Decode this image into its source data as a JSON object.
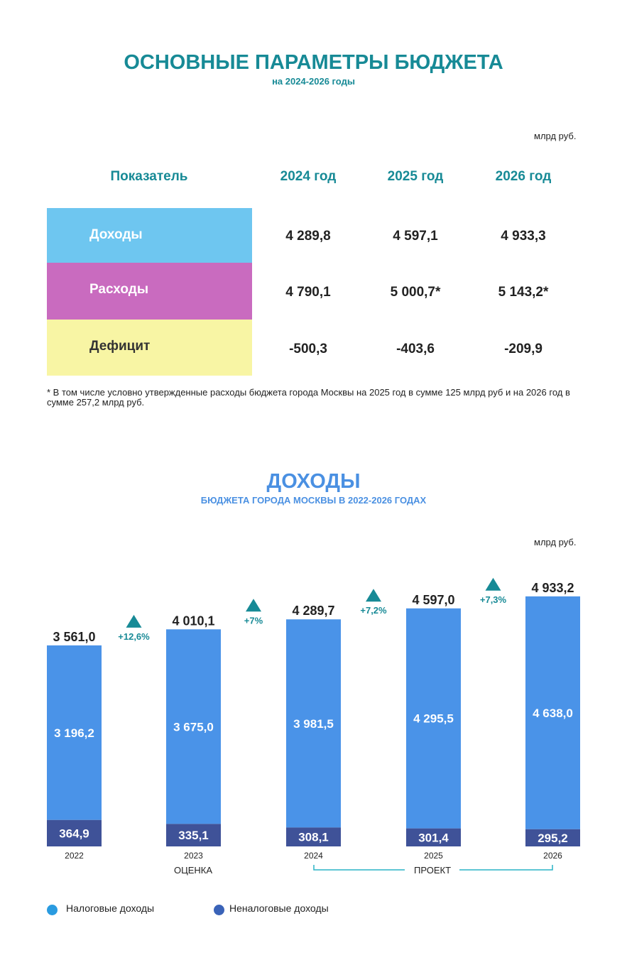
{
  "table_section": {
    "title": "ОСНОВНЫЕ ПАРАМЕТРЫ БЮДЖЕТА",
    "subtitle": "на 2024-2026 годы",
    "unit": "млрд руб.",
    "headers": [
      "Показатель",
      "2024 год",
      "2025 год",
      "2026 год"
    ],
    "rows": [
      {
        "label": "Доходы",
        "color": "#6ec6f0",
        "values": [
          "4 289,8",
          "4 597,1",
          "4 933,3"
        ]
      },
      {
        "label": "Расходы",
        "color": "#c96bbf",
        "values": [
          "4 790,1",
          "5 000,7*",
          "5 143,2*"
        ]
      },
      {
        "label": "Дефицит",
        "color": "#f8f5a4",
        "values": [
          "-500,3",
          "-403,6",
          "-209,9"
        ]
      }
    ],
    "footnote": "* В том числе условно утвержденные расходы бюджета города Москвы на 2025 год в сумме 125 млрд руб и на 2026 год в сумме 257,2 млрд руб."
  },
  "chart_data": {
    "type": "bar",
    "stacked": true,
    "title": "ДОХОДЫ",
    "subtitle": "БЮДЖЕТА ГОРОДА МОСКВЫ В 2022-2026 ГОДАХ",
    "unit": "млрд руб.",
    "categories": [
      "2022",
      "2023",
      "2024",
      "2025",
      "2026"
    ],
    "series": [
      {
        "name": "Неналоговые доходы",
        "color": "#3f5298",
        "values": [
          364.9,
          335.1,
          308.1,
          301.4,
          295.2
        ],
        "labels": [
          "364,9",
          "335,1",
          "308,1",
          "301,4",
          "295,2"
        ]
      },
      {
        "name": "Налоговые доходы",
        "color": "#4a93e8",
        "values": [
          3196.2,
          3675.0,
          3981.5,
          4295.5,
          4638.0
        ],
        "labels": [
          "3 196,2",
          "3 675,0",
          "3 981,5",
          "4 295,5",
          "4 638,0"
        ]
      }
    ],
    "totals": [
      3561.0,
      4010.1,
      4289.7,
      4597.0,
      4933.2
    ],
    "total_labels": [
      "3 561,0",
      "4 010,1",
      "4 289,7",
      "4 597,0",
      "4 933,2"
    ],
    "growth": [
      "+12,6%",
      "+7%",
      "+7,2%",
      "+7,3%"
    ],
    "growth_color": "#178a96",
    "period_labels": {
      "estimate": "ОЦЕНКА",
      "project": "ПРОЕКТ"
    },
    "legend": [
      {
        "label": "Налоговые доходы",
        "color": "#2a9be0"
      },
      {
        "label": "Неналоговые доходы",
        "color": "#3a63b8"
      }
    ]
  }
}
